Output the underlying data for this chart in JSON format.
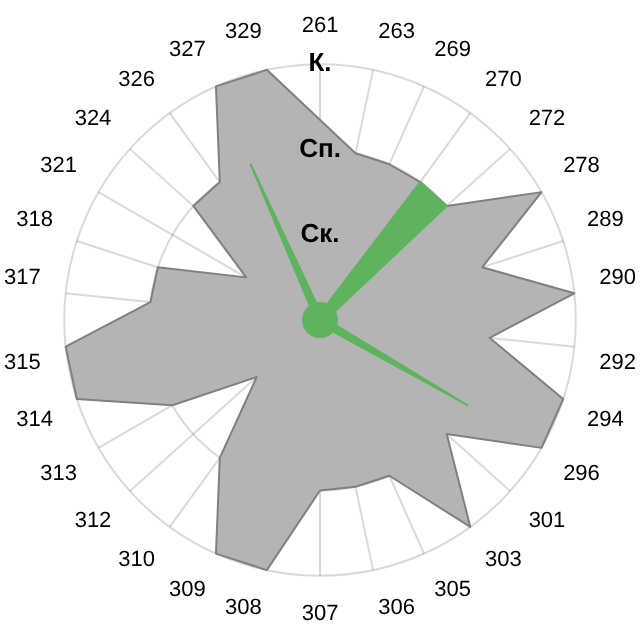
{
  "chart_data": {
    "type": "radar",
    "categories": [
      "261",
      "263",
      "269",
      "270",
      "272",
      "278",
      "289",
      "290",
      "292",
      "294",
      "296",
      "301",
      "303",
      "305",
      "306",
      "307",
      "308",
      "309",
      "310",
      "312",
      "313",
      "314",
      "315",
      "317",
      "318",
      "321",
      "324",
      "326",
      "327",
      "329"
    ],
    "series": [
      {
        "color": "#b4b4b4",
        "values": [
          null,
          2,
          2,
          2,
          2,
          3,
          2,
          3,
          2,
          3,
          3,
          2,
          3,
          2,
          2,
          2,
          3,
          3,
          2,
          1,
          2,
          3,
          3,
          2,
          2,
          1,
          2,
          2,
          3,
          3
        ]
      },
      {
        "color": "#5fb35f",
        "values": [
          0.2,
          0.2,
          0.2,
          2,
          2,
          0.2,
          0.2,
          0.2,
          0.2,
          0.2,
          2,
          0.2,
          0.2,
          0.2,
          0.2,
          0.2,
          0.2,
          0.2,
          0.2,
          0.2,
          0.2,
          0.2,
          0.2,
          0.2,
          0.2,
          0.2,
          0.2,
          0.2,
          2,
          0.2
        ]
      }
    ],
    "ylim": [
      0,
      3
    ],
    "yticks": [
      {
        "value": 1,
        "label": "Ск."
      },
      {
        "value": 2,
        "label": "Сп."
      },
      {
        "value": 3,
        "label": "К."
      }
    ],
    "grid": true,
    "legend": false,
    "marker": "none"
  }
}
